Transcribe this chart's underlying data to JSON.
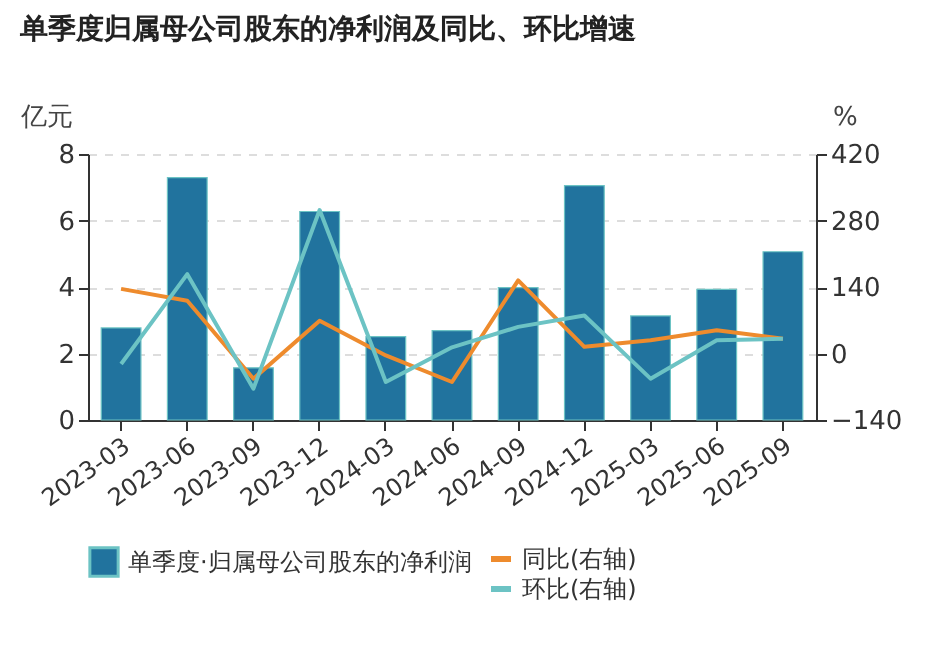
{
  "chart_data": {
    "type": "bar",
    "title": "单季度归属母公司股东的净利润及同比、环比增速",
    "ylabel": "亿元",
    "y2label": "%",
    "categories": [
      "2023-03",
      "2023-06",
      "2023-09",
      "2023-12",
      "2024-03",
      "2024-06",
      "2024-09",
      "2024-12",
      "2025-03",
      "2025-06",
      "2025-09"
    ],
    "series": [
      {
        "name": "单季度·归属母公司股东的净利润",
        "color": "#21739e",
        "values": [
          2.77,
          7.29,
          1.57,
          6.27,
          2.51,
          2.69,
          3.98,
          7.05,
          3.13,
          3.93,
          5.06
        ]
      },
      {
        "name": "同比(右轴)",
        "type": "line",
        "axis": "y2",
        "color": "#ee8b2d",
        "values": [
          136,
          111,
          -53,
          69,
          -4,
          -60,
          154,
          14,
          28,
          49,
          31
        ]
      },
      {
        "name": "环比(右轴)",
        "type": "line",
        "axis": "y2",
        "color": "#6cc3c4",
        "values": [
          -22,
          167,
          -74,
          302,
          -60,
          13,
          56,
          80,
          -53,
          28,
          31
        ]
      }
    ],
    "ylim": [
      0,
      8
    ],
    "yticks": [
      0,
      2,
      4,
      6,
      8
    ],
    "y2lim": [
      -140,
      420
    ],
    "y2ticks": [
      -140,
      0,
      140,
      280,
      420
    ],
    "grid": "y",
    "legend": "bottom",
    "marker": "none",
    "line_style": "solid"
  }
}
